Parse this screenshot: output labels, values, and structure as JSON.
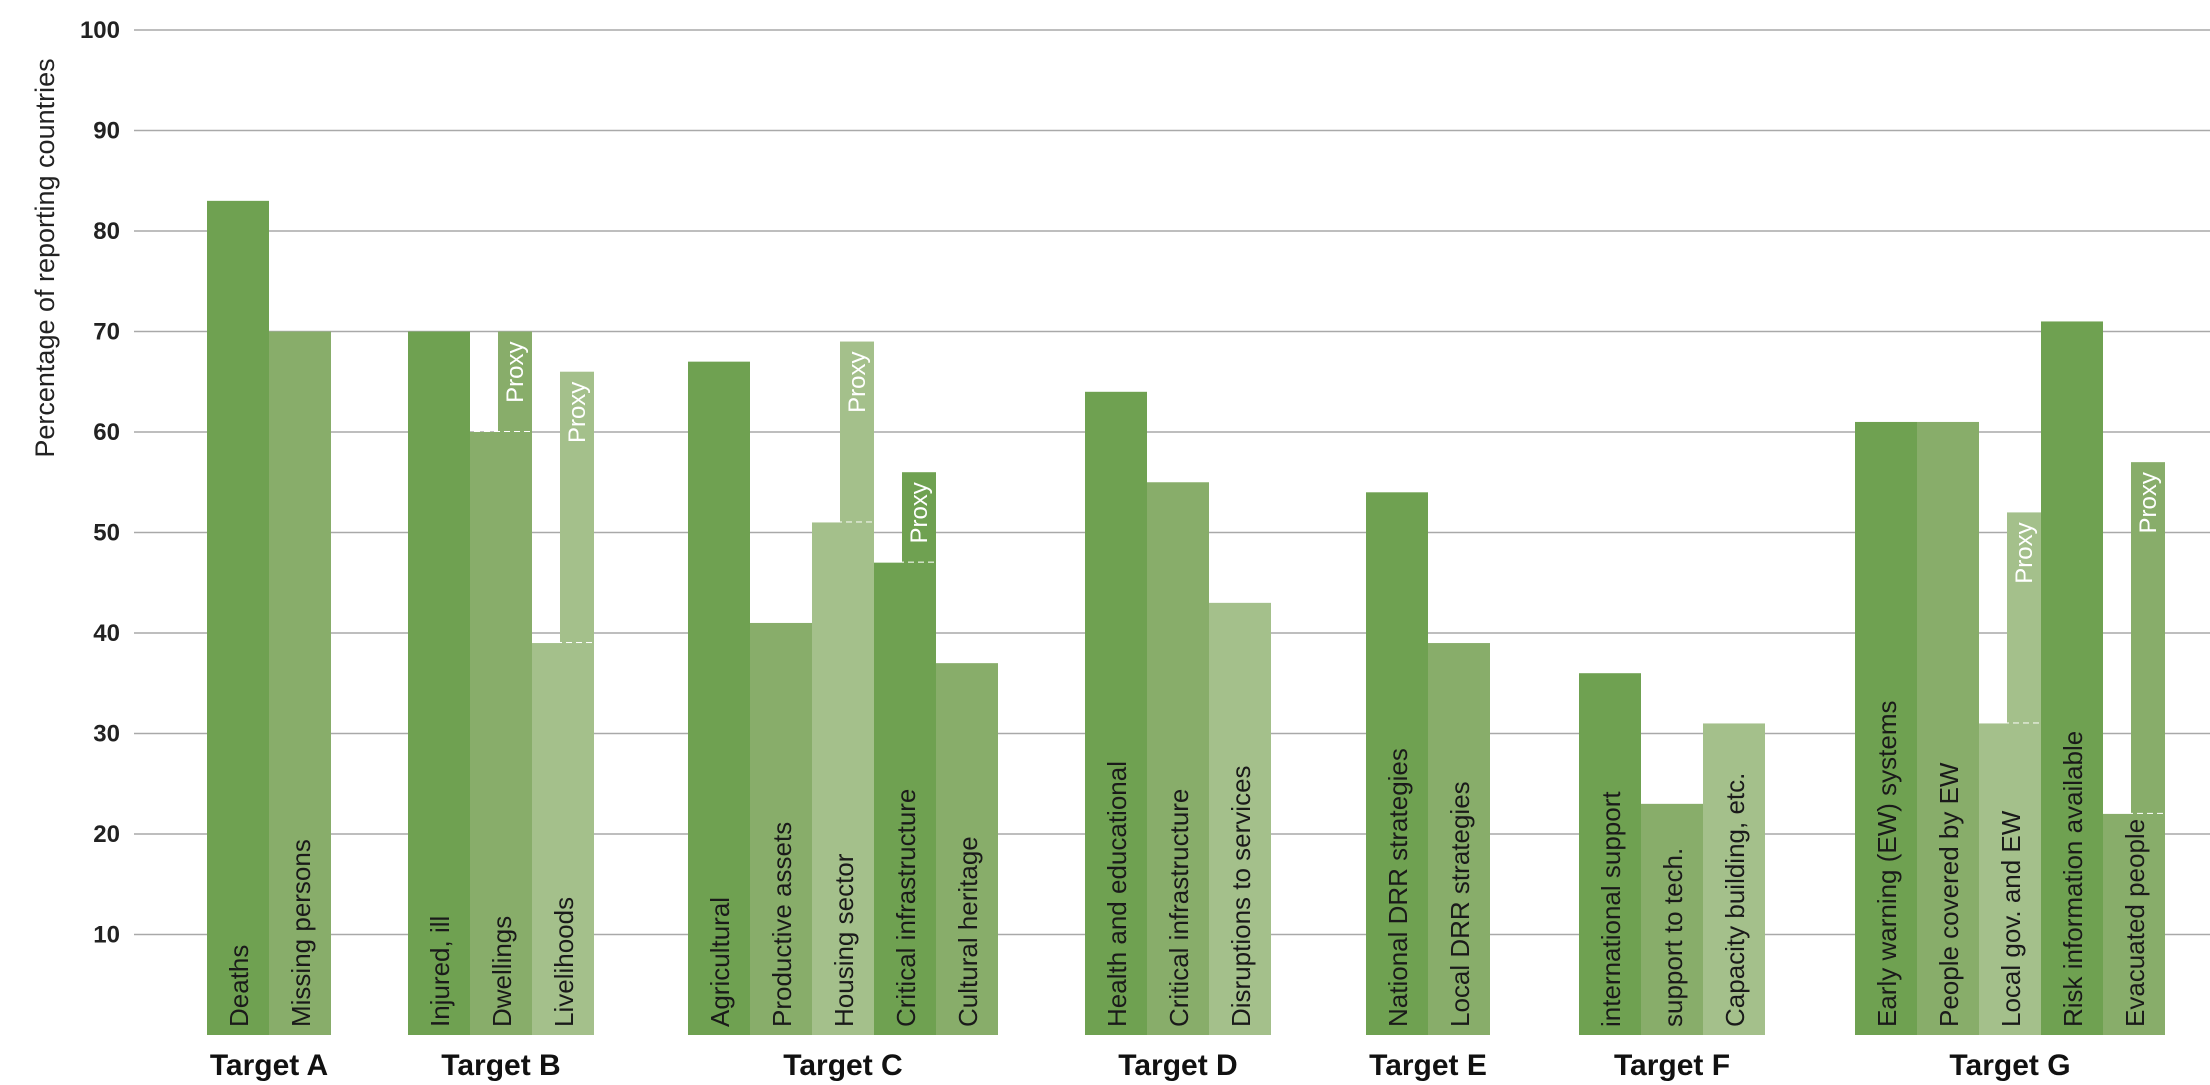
{
  "chart_data": {
    "type": "bar",
    "ylabel": "Percentage  of reporting countries",
    "ylim": [
      0,
      100
    ],
    "yticks": [
      10,
      20,
      30,
      40,
      50,
      60,
      70,
      80,
      90,
      100
    ],
    "grid": true,
    "proxy_label": "Proxy",
    "groups": [
      {
        "label": "Target A",
        "bars": [
          {
            "label": "Deaths",
            "value": 83
          },
          {
            "label": "Missing persons",
            "value": 70
          }
        ]
      },
      {
        "label": "Target B",
        "bars": [
          {
            "label": "Injured, ill",
            "value": 70
          },
          {
            "label": "Dwellings",
            "value": 60,
            "proxy_value": 70
          },
          {
            "label": "Livelihoods",
            "value": 39,
            "proxy_value": 66
          }
        ]
      },
      {
        "label": "Target C",
        "bars": [
          {
            "label": "Agricultural",
            "value": 67
          },
          {
            "label": "Productive assets",
            "value": 41
          },
          {
            "label": "Housing sector",
            "value": 51,
            "proxy_value": 69
          },
          {
            "label": "Critical infrastructure",
            "value": 47,
            "proxy_value": 56
          },
          {
            "label": "Cultural heritage",
            "value": 37
          }
        ]
      },
      {
        "label": "Target D",
        "bars": [
          {
            "label": "Health and educational",
            "value": 64
          },
          {
            "label": "Critical infrastructure",
            "value": 55
          },
          {
            "label": "Disruptions to services",
            "value": 43
          }
        ]
      },
      {
        "label": "Target E",
        "bars": [
          {
            "label": "National DRR strategies",
            "value": 54
          },
          {
            "label": "Local DRR strategies",
            "value": 39
          }
        ]
      },
      {
        "label": "Target F",
        "bars": [
          {
            "label": "international support",
            "value": 36
          },
          {
            "label": "support to  tech.",
            "value": 23
          },
          {
            "label": "Capacity building, etc.",
            "value": 31
          }
        ]
      },
      {
        "label": "Target G",
        "bars": [
          {
            "label": "Early warning  (EW) systems",
            "value": 61
          },
          {
            "label": "People covered by EW",
            "value": 61
          },
          {
            "label": "Local gov. and EW",
            "value": 31,
            "proxy_value": 52
          },
          {
            "label": "Risk information available",
            "value": 71
          },
          {
            "label": "Evacuated people",
            "value": 22,
            "proxy_value": 57
          }
        ]
      }
    ],
    "colors": [
      "#6fa151",
      "#88ad6a",
      "#a4c08b"
    ]
  }
}
